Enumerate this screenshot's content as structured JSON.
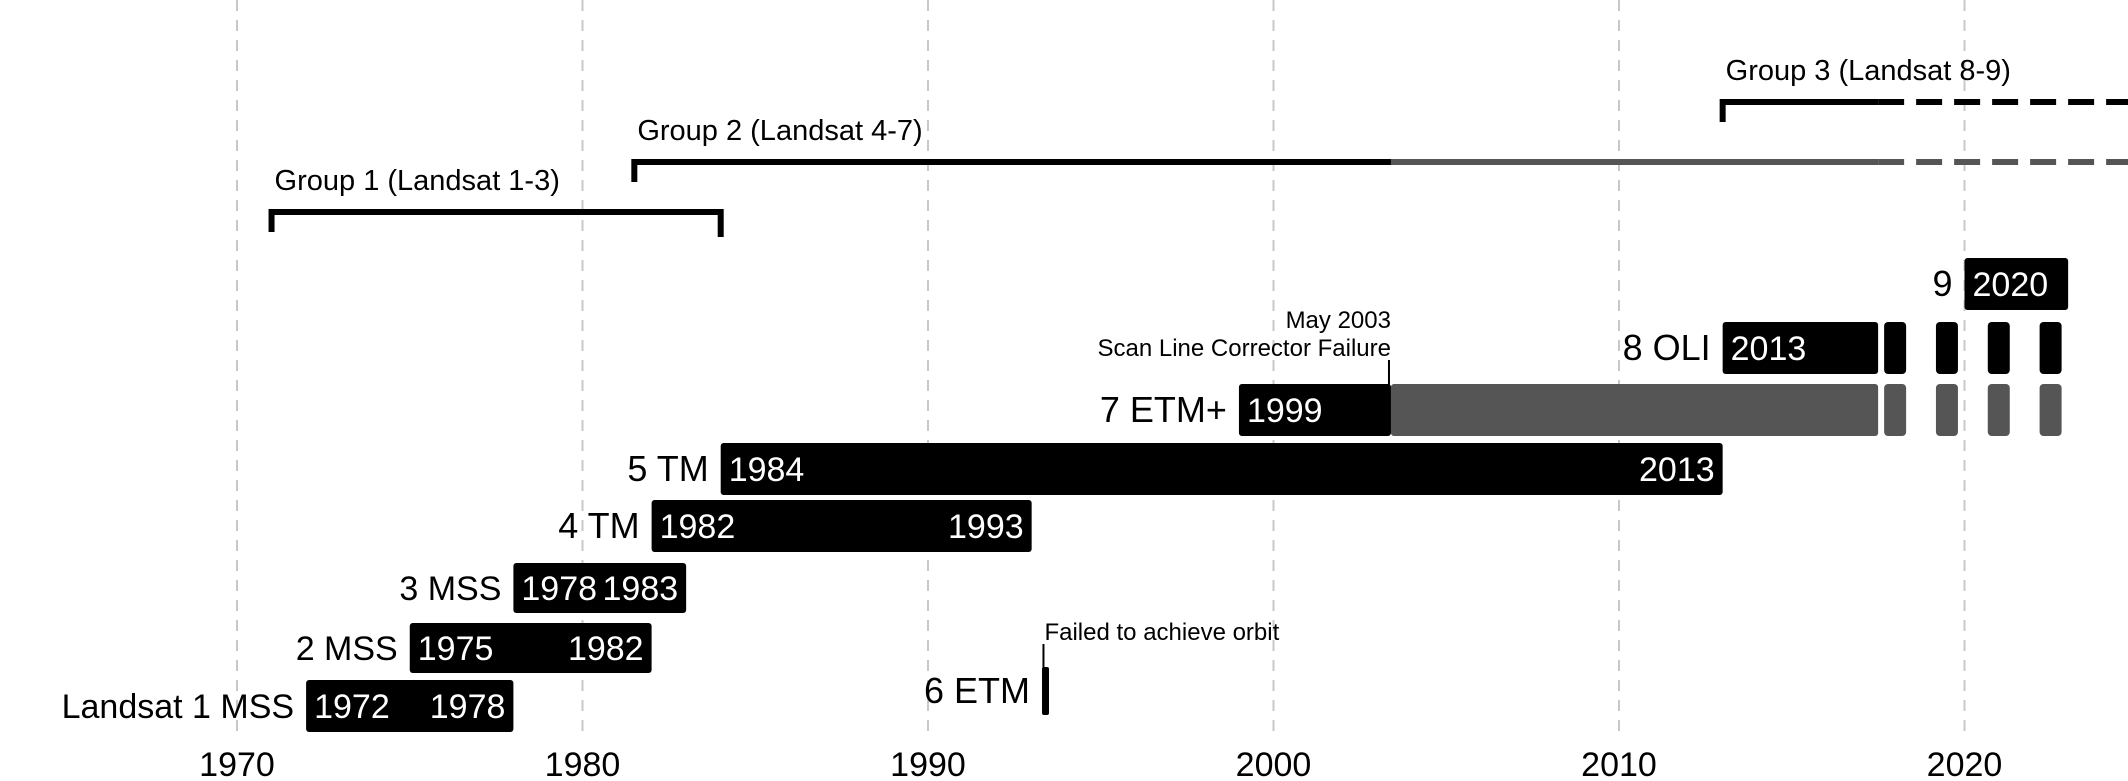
{
  "chart_data": {
    "type": "timeline",
    "xlim": [
      1969.5,
      2023.0
    ],
    "x_ticks": [
      1970,
      1980,
      1990,
      2000,
      2010,
      2020
    ],
    "grid": "vertical-dashed",
    "missions": [
      {
        "label": "Landsat 1 MSS",
        "start": 1972,
        "end": 1978,
        "start_label": "1972",
        "end_label": "1978"
      },
      {
        "label": "2 MSS",
        "start": 1975,
        "end": 1982,
        "start_label": "1975",
        "end_label": "1982"
      },
      {
        "label": "3 MSS",
        "start": 1978,
        "end": 1983,
        "start_label": "1978",
        "end_label": "1983"
      },
      {
        "label": "4 TM",
        "start": 1982,
        "end": 1993,
        "start_label": "1982",
        "end_label": "1993"
      },
      {
        "label": "5 TM",
        "start": 1984,
        "end": 2013,
        "start_label": "1984",
        "end_label": "2013"
      },
      {
        "label": "6 ETM",
        "start": 1993.3,
        "end": 1993.5,
        "start_label": "",
        "end_label": ""
      },
      {
        "label": "7 ETM+",
        "start": 1999,
        "end": 2017.5,
        "start_label": "1999",
        "end_label": "",
        "degraded_from": 2003.4,
        "continues_to": 2023
      },
      {
        "label": "8 OLI",
        "start": 2013,
        "end": 2017.5,
        "start_label": "2013",
        "end_label": "",
        "continues_to": 2023
      },
      {
        "label": "9",
        "start": 2020,
        "end": 2023,
        "start_label": "2020",
        "end_label": ""
      }
    ],
    "groups": [
      {
        "label": "Group 1 (Landsat 1-3)",
        "start": 1971,
        "end": 1984
      },
      {
        "label": "Group 2 (Landsat 4-7)",
        "start": 1981.5,
        "end": 2017.5,
        "degraded_from": 2003.4,
        "continues_to": 2023
      },
      {
        "label": "Group 3 (Landsat 8-9)",
        "start": 2013,
        "end": 2017.5,
        "continues_to": 2023
      }
    ],
    "annotations": [
      {
        "text": "May 2003",
        "x": 2003.4
      },
      {
        "text": "Scan Line Corrector Failure",
        "x": 2003.4
      },
      {
        "text": "Failed to achieve orbit",
        "x": 1993.4
      }
    ],
    "colors": {
      "active": "#000000",
      "degraded": "#555555",
      "grid": "#c8c8c8",
      "bar_text": "#ffffff"
    }
  }
}
